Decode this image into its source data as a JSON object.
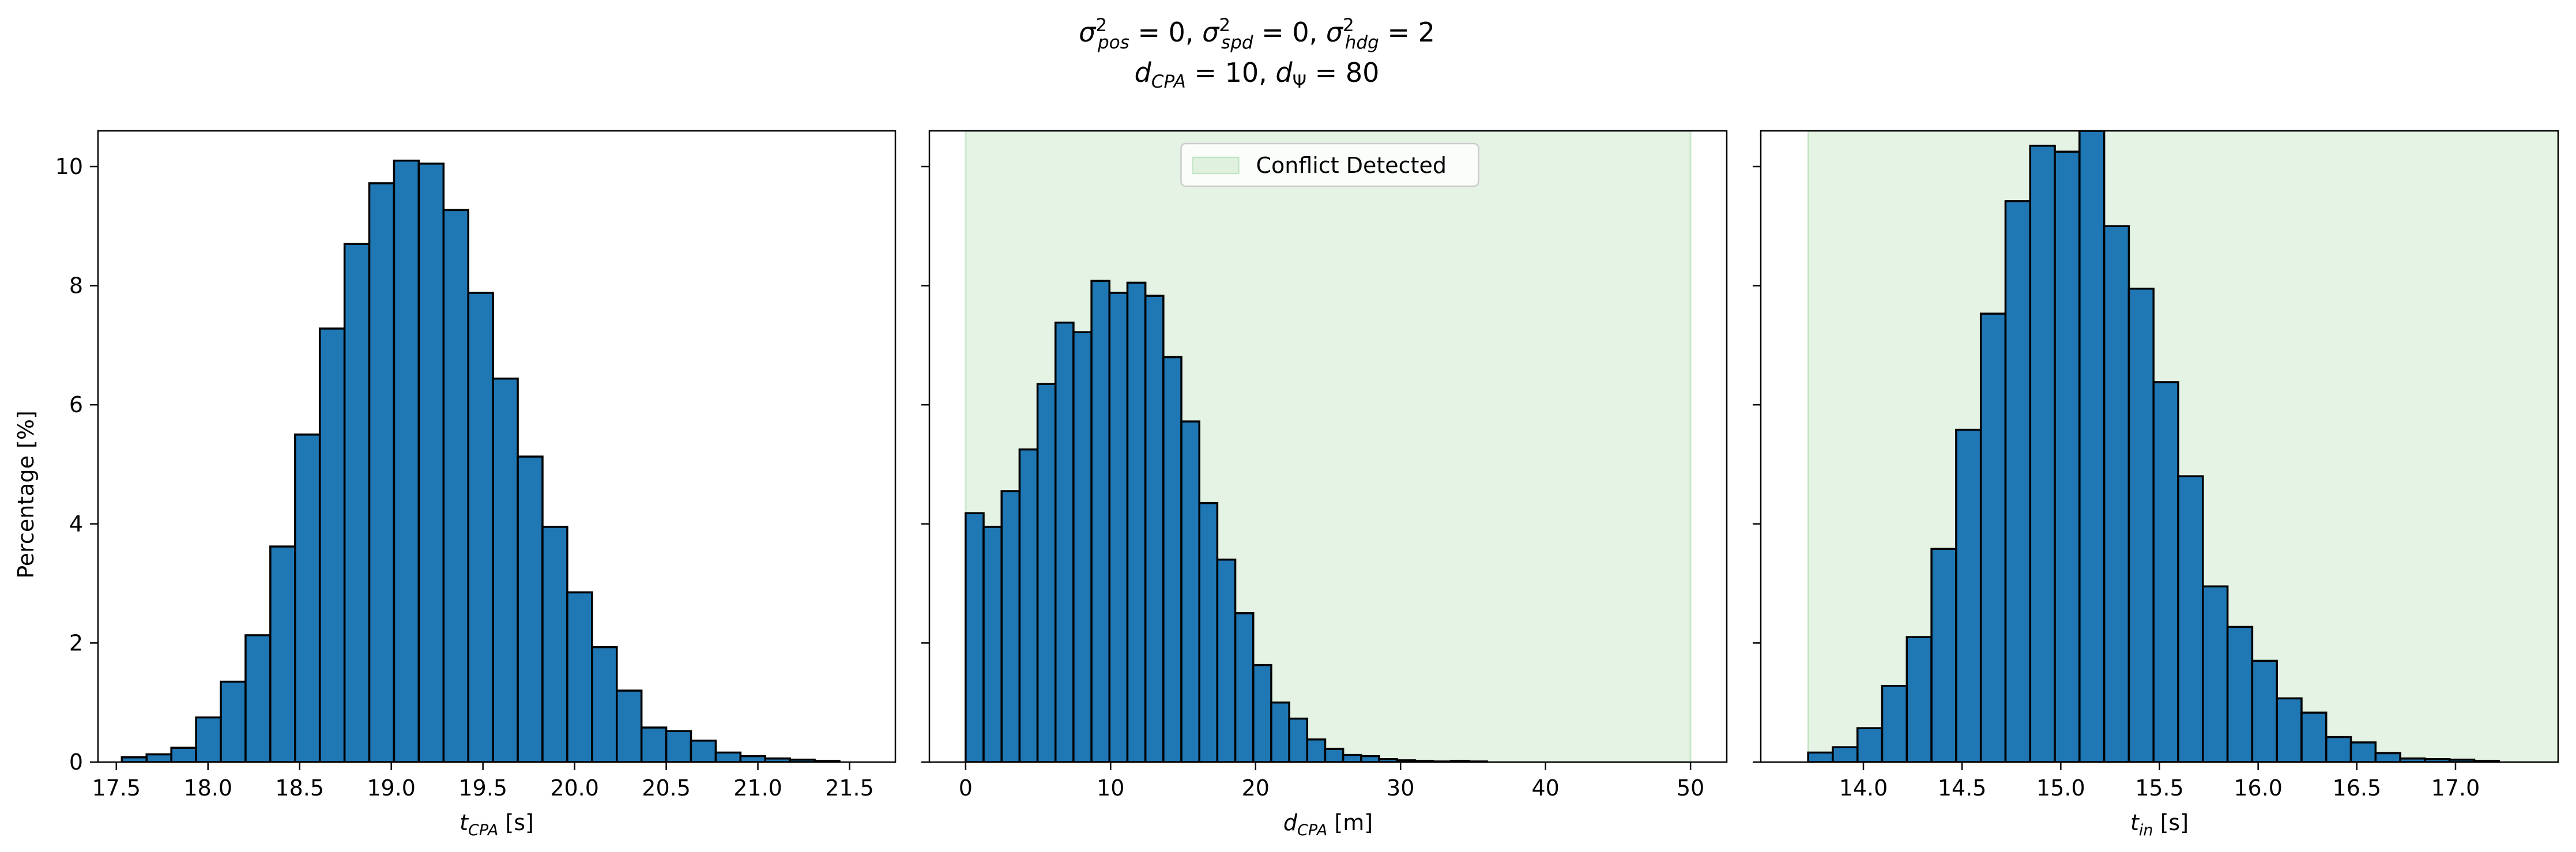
{
  "figure": {
    "title_line1": "σ²pos = 0, σ²spd = 0, σ²hdg = 2",
    "title_line2": "dCPA = 10, dΨ = 80"
  },
  "chart_data": [
    {
      "type": "bar",
      "subtype": "histogram",
      "xlabel_main": "t",
      "xlabel_sub": "CPA",
      "xlabel_unit": "[s]",
      "ylabel": "Percentage [%]",
      "xlim": [
        17.4,
        21.75
      ],
      "ylim": [
        0,
        10.6
      ],
      "xticks": [
        "17.5",
        "18.0",
        "18.5",
        "19.0",
        "19.5",
        "20.0",
        "20.5",
        "21.0",
        "21.5"
      ],
      "yticks": [
        "0",
        "2",
        "4",
        "6",
        "8",
        "10"
      ],
      "bin_start": 17.53,
      "bin_width": 0.135,
      "values": [
        0.08,
        0.13,
        0.24,
        0.75,
        1.35,
        2.13,
        3.62,
        5.5,
        7.28,
        8.7,
        9.72,
        10.1,
        10.05,
        9.27,
        7.88,
        6.44,
        5.13,
        3.95,
        2.85,
        1.93,
        1.2,
        0.58,
        0.52,
        0.36,
        0.16,
        0.1,
        0.06,
        0.04,
        0.02
      ],
      "bar_color": "#1f77b4"
    },
    {
      "type": "bar",
      "subtype": "histogram",
      "xlabel_main": "d",
      "xlabel_sub": "CPA",
      "xlabel_unit": "[m]",
      "xlim": [
        -2.5,
        52.5
      ],
      "ylim": [
        0,
        10.6
      ],
      "xticks": [
        "0",
        "10",
        "20",
        "30",
        "40",
        "50"
      ],
      "bin_start": 0,
      "bin_width": 1.24,
      "values": [
        4.18,
        3.95,
        4.55,
        5.25,
        6.35,
        7.38,
        7.22,
        8.08,
        7.88,
        8.05,
        7.83,
        6.8,
        5.72,
        4.35,
        3.4,
        2.5,
        1.63,
        1.0,
        0.73,
        0.38,
        0.22,
        0.12,
        0.1,
        0.05,
        0.03,
        0.02,
        0.01,
        0.02,
        0.01
      ],
      "bar_color": "#1f77b4",
      "shaded_region": {
        "from": 0,
        "to": 50,
        "color": "#2ca02c"
      },
      "legend": {
        "label": "Conflict Detected",
        "position": "upper center"
      }
    },
    {
      "type": "bar",
      "subtype": "histogram",
      "xlabel_main": "t",
      "xlabel_sub": "in",
      "xlabel_unit": "[s]",
      "xlim": [
        13.48,
        17.52
      ],
      "ylim": [
        0,
        10.6
      ],
      "xticks": [
        "14.0",
        "14.5",
        "15.0",
        "15.5",
        "16.0",
        "16.5",
        "17.0"
      ],
      "bin_start": 13.72,
      "bin_width": 0.125,
      "values": [
        0.16,
        0.25,
        0.57,
        1.28,
        2.1,
        3.58,
        5.58,
        7.53,
        9.42,
        10.35,
        10.25,
        10.6,
        9.0,
        7.95,
        6.38,
        4.8,
        2.95,
        2.27,
        1.7,
        1.07,
        0.83,
        0.42,
        0.33,
        0.15,
        0.06,
        0.05,
        0.04,
        0.02
      ],
      "bar_color": "#1f77b4",
      "shaded_region": {
        "from": 13.72,
        "to": 17.6,
        "color": "#2ca02c"
      }
    }
  ]
}
